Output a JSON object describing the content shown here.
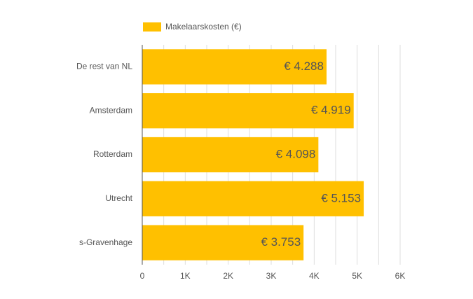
{
  "chart_data": {
    "type": "bar",
    "orientation": "horizontal",
    "legend_position": "top",
    "categories": [
      "De rest van NL",
      "Amsterdam",
      "Rotterdam",
      "Utrecht",
      "s-Gravenhage"
    ],
    "series": [
      {
        "name": "Makelaarskosten (€)",
        "color": "#ffc000",
        "values": [
          4288,
          4919,
          4098,
          5153,
          3753
        ],
        "value_labels": [
          "€ 4.288",
          "€ 4.919",
          "€ 4.098",
          "€ 5.153",
          "€ 3.753"
        ]
      }
    ],
    "xlim": [
      0,
      6000
    ],
    "xticks": [
      0,
      {
        "value": 1000,
        "label": "1K"
      },
      {
        "value": 2000,
        "label": "2K"
      },
      {
        "value": 3000,
        "label": "3K"
      },
      {
        "value": 4000,
        "label": "4K"
      },
      {
        "value": 5000,
        "label": "5K"
      },
      {
        "value": 6000,
        "label": "6K"
      }
    ],
    "minor_xticks": [
      500,
      1500,
      2500,
      3500,
      4500,
      5500
    ],
    "grid": true
  }
}
